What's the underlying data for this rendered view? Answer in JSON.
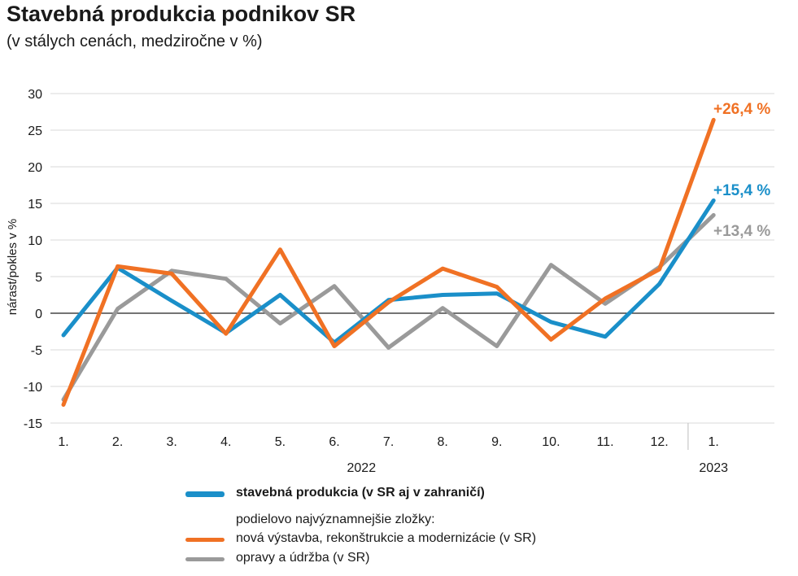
{
  "title": "Stavebná produkcia podnikov SR",
  "subtitle": "(v stálych cenách, medziročne v %)",
  "colors": {
    "construction": "#1a8fc9",
    "new_build": "#f07124",
    "repairs": "#9a9a9a"
  },
  "chart_data": {
    "type": "line",
    "categories": [
      "1.",
      "2.",
      "3.",
      "4.",
      "5.",
      "6.",
      "7.",
      "8.",
      "9.",
      "10.",
      "11.",
      "12.",
      "1."
    ],
    "years": [
      {
        "label": "2022"
      },
      {
        "label": "2023"
      }
    ],
    "ylabel": "nárast/pokles v %",
    "ylim": [
      -15,
      30
    ],
    "yticks": [
      30,
      25,
      20,
      15,
      10,
      5,
      0,
      -5,
      -10,
      -15
    ],
    "series": [
      {
        "name": "stavebná produkcia (v SR aj v zahraničí)",
        "color": "#1a8fc9",
        "values": [
          -3.0,
          6.2,
          1.7,
          -2.7,
          2.5,
          -4.0,
          1.8,
          2.5,
          2.7,
          -1.2,
          -3.2,
          4.0,
          15.4
        ]
      },
      {
        "name": "nová výstavba, rekonštrukcie a modernizácie (v SR)",
        "color": "#f07124",
        "values": [
          -12.5,
          6.4,
          5.4,
          -2.8,
          8.7,
          -4.5,
          1.5,
          6.1,
          3.6,
          -3.6,
          2.0,
          6.0,
          26.4
        ]
      },
      {
        "name": "opravy a údržba (v SR)",
        "color": "#9a9a9a",
        "values": [
          -11.8,
          0.6,
          5.8,
          4.7,
          -1.4,
          3.7,
          -4.7,
          0.7,
          -4.5,
          6.6,
          1.3,
          6.3,
          13.4
        ]
      }
    ],
    "end_labels": [
      "+26,4 %",
      "+15,4 %",
      "+13,4 %"
    ],
    "legend": {
      "main": "stavebná produkcia (v SR aj v zahraničí)",
      "header": "podielovo najvýznamnejšie zložky:",
      "item1": "nová výstavba, rekonštrukcie a modernizácie (v SR)",
      "item2": "opravy a údržba (v SR)"
    }
  }
}
